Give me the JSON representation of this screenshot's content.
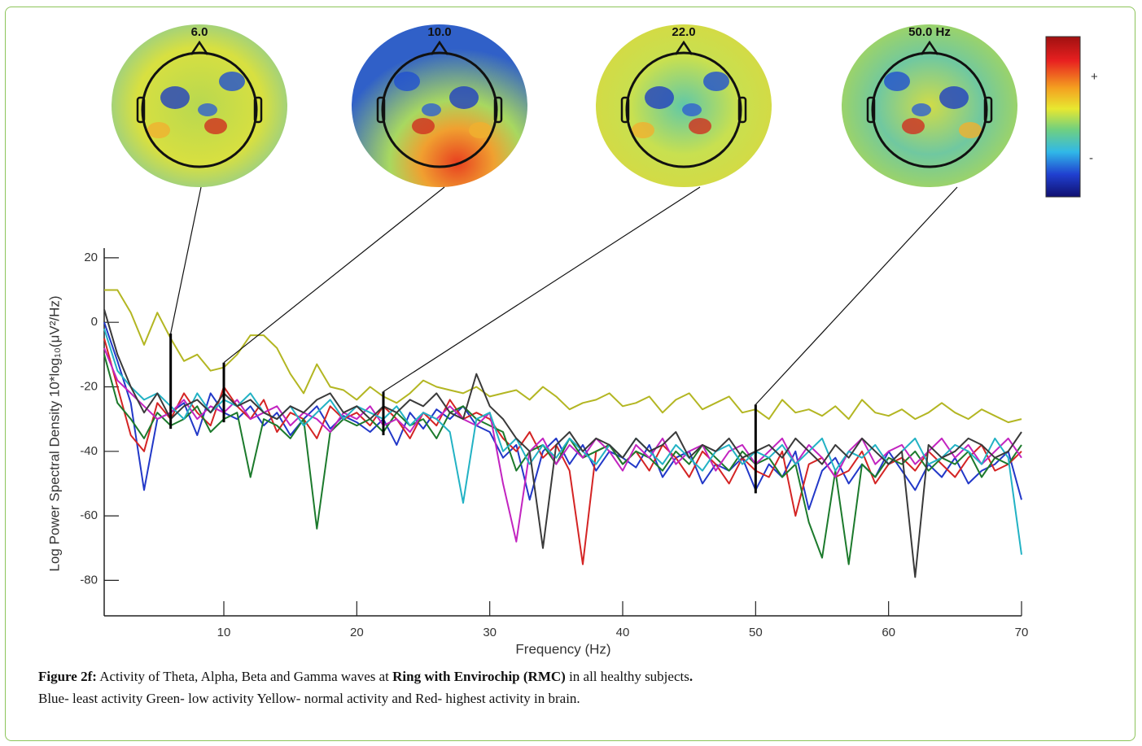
{
  "chart_data": {
    "type": "line",
    "xlabel": "Frequency (Hz)",
    "ylabel": "Log Power Spectral Density 10*log₁₀(μV²/Hz)",
    "xlim": [
      1,
      70
    ],
    "ylim": [
      -91,
      23
    ],
    "xticks": [
      10,
      20,
      30,
      40,
      50,
      60,
      70
    ],
    "yticks": [
      -80,
      -60,
      -40,
      -20,
      0,
      20
    ],
    "x": [
      1,
      2,
      3,
      4,
      5,
      6,
      7,
      8,
      9,
      10,
      11,
      12,
      13,
      14,
      15,
      16,
      17,
      18,
      19,
      20,
      21,
      22,
      23,
      24,
      25,
      26,
      27,
      28,
      29,
      30,
      31,
      32,
      33,
      34,
      35,
      36,
      37,
      38,
      39,
      40,
      41,
      42,
      43,
      44,
      45,
      46,
      47,
      48,
      49,
      50,
      51,
      52,
      53,
      54,
      55,
      56,
      57,
      58,
      59,
      60,
      61,
      62,
      63,
      64,
      65,
      66,
      67,
      68,
      69,
      70
    ],
    "series": [
      {
        "color": "#b3b622",
        "values": [
          10,
          10,
          3,
          -7,
          3,
          -5,
          -12,
          -10,
          -15,
          -14,
          -10,
          -4,
          -4,
          -8,
          -16,
          -22,
          -13,
          -20,
          -21,
          -24,
          -20,
          -23,
          -25,
          -22,
          -18,
          -20,
          -21,
          -22,
          -20,
          -23,
          -22,
          -21,
          -24,
          -20,
          -23,
          -27,
          -25,
          -24,
          -22,
          -26,
          -25,
          -23,
          -28,
          -24,
          -22,
          -27,
          -25,
          -23,
          -28,
          -27,
          -30,
          -24,
          -28,
          -27,
          -29,
          -26,
          -30,
          -24,
          -28,
          -29,
          -27,
          -30,
          -28,
          -25,
          -28,
          -30,
          -27,
          -29,
          -31,
          -30
        ]
      },
      {
        "color": "#2238c8",
        "values": [
          0,
          -12,
          -25,
          -52,
          -30,
          -28,
          -25,
          -35,
          -22,
          -28,
          -30,
          -26,
          -32,
          -28,
          -35,
          -30,
          -26,
          -33,
          -29,
          -31,
          -34,
          -30,
          -38,
          -28,
          -33,
          -27,
          -30,
          -26,
          -32,
          -34,
          -42,
          -38,
          -55,
          -40,
          -36,
          -44,
          -38,
          -46,
          -40,
          -42,
          -45,
          -38,
          -48,
          -42,
          -40,
          -50,
          -44,
          -46,
          -42,
          -52,
          -44,
          -48,
          -40,
          -58,
          -46,
          -42,
          -50,
          -44,
          -48,
          -40,
          -46,
          -52,
          -44,
          -48,
          -42,
          -50,
          -46,
          -44,
          -40,
          -55
        ]
      },
      {
        "color": "#d42424",
        "values": [
          -5,
          -20,
          -35,
          -40,
          -25,
          -30,
          -22,
          -28,
          -32,
          -20,
          -26,
          -30,
          -24,
          -34,
          -28,
          -30,
          -36,
          -26,
          -30,
          -28,
          -32,
          -26,
          -30,
          -36,
          -28,
          -32,
          -24,
          -30,
          -28,
          -30,
          -36,
          -40,
          -34,
          -42,
          -38,
          -46,
          -75,
          -40,
          -38,
          -44,
          -40,
          -46,
          -38,
          -42,
          -48,
          -40,
          -44,
          -50,
          -42,
          -46,
          -48,
          -40,
          -60,
          -44,
          -42,
          -48,
          -46,
          -40,
          -50,
          -44,
          -42,
          -46,
          -40,
          -44,
          -48,
          -42,
          -38,
          -46,
          -44,
          -40
        ]
      },
      {
        "color": "#1c7a2c",
        "values": [
          -10,
          -25,
          -30,
          -36,
          -28,
          -32,
          -30,
          -26,
          -34,
          -30,
          -28,
          -48,
          -30,
          -32,
          -36,
          -30,
          -64,
          -34,
          -30,
          -32,
          -30,
          -34,
          -28,
          -32,
          -30,
          -36,
          -28,
          -26,
          -30,
          -32,
          -34,
          -46,
          -40,
          -38,
          -44,
          -36,
          -42,
          -40,
          -38,
          -44,
          -40,
          -42,
          -46,
          -40,
          -44,
          -38,
          -42,
          -46,
          -40,
          -44,
          -42,
          -48,
          -44,
          -62,
          -73,
          -46,
          -75,
          -44,
          -48,
          -42,
          -44,
          -40,
          -46,
          -42,
          -44,
          -40,
          -48,
          -42,
          -44,
          -38
        ]
      },
      {
        "color": "#c224c0",
        "values": [
          -8,
          -18,
          -22,
          -26,
          -30,
          -28,
          -24,
          -30,
          -26,
          -28,
          -24,
          -30,
          -28,
          -26,
          -32,
          -28,
          -30,
          -34,
          -28,
          -30,
          -26,
          -32,
          -30,
          -34,
          -28,
          -30,
          -26,
          -30,
          -32,
          -28,
          -50,
          -68,
          -40,
          -36,
          -44,
          -38,
          -42,
          -36,
          -40,
          -46,
          -38,
          -42,
          -36,
          -44,
          -40,
          -38,
          -46,
          -40,
          -38,
          -44,
          -40,
          -36,
          -44,
          -38,
          -42,
          -48,
          -40,
          -36,
          -44,
          -40,
          -38,
          -44,
          -40,
          -36,
          -42,
          -38,
          -44,
          -40,
          -36,
          -42
        ]
      },
      {
        "color": "#22b2c4",
        "values": [
          -2,
          -15,
          -20,
          -24,
          -22,
          -26,
          -30,
          -22,
          -28,
          -24,
          -26,
          -22,
          -28,
          -30,
          -26,
          -32,
          -28,
          -24,
          -30,
          -26,
          -28,
          -30,
          -26,
          -32,
          -28,
          -30,
          -34,
          -56,
          -30,
          -28,
          -40,
          -36,
          -44,
          -38,
          -42,
          -36,
          -40,
          -44,
          -38,
          -42,
          -36,
          -40,
          -44,
          -38,
          -42,
          -46,
          -40,
          -38,
          -44,
          -40,
          -42,
          -38,
          -44,
          -40,
          -36,
          -46,
          -40,
          -42,
          -38,
          -44,
          -40,
          -36,
          -44,
          -42,
          -38,
          -40,
          -44,
          -36,
          -42,
          -72
        ]
      },
      {
        "color": "#3a3a3a",
        "values": [
          4,
          -10,
          -20,
          -28,
          -22,
          -30,
          -26,
          -24,
          -28,
          -22,
          -26,
          -24,
          -28,
          -30,
          -26,
          -28,
          -24,
          -22,
          -28,
          -26,
          -30,
          -26,
          -28,
          -24,
          -26,
          -22,
          -28,
          -30,
          -16,
          -26,
          -30,
          -36,
          -40,
          -70,
          -38,
          -34,
          -40,
          -36,
          -38,
          -42,
          -36,
          -40,
          -38,
          -34,
          -42,
          -38,
          -40,
          -36,
          -42,
          -40,
          -38,
          -42,
          -36,
          -40,
          -44,
          -38,
          -42,
          -36,
          -40,
          -44,
          -40,
          -79,
          -38,
          -42,
          -40,
          -36,
          -38,
          -42,
          -40,
          -34
        ]
      }
    ],
    "topomaps": [
      {
        "title": "6.0",
        "freq": 6
      },
      {
        "title": "10.0",
        "freq": 10
      },
      {
        "title": "22.0",
        "freq": 22
      },
      {
        "title": "50.0 Hz",
        "freq": 50
      }
    ],
    "colorbar": {
      "top_label": "+",
      "bottom_label": "-"
    }
  },
  "caption": {
    "label": "Figure 2f:",
    "text": "Activity of Theta, Alpha, Beta and Gamma waves at",
    "bold": "Ring with Envirochip (RMC)",
    "tail": "in all healthy subjects",
    "end": ".",
    "line2": "Blue- least activity Green- low activity Yellow- normal activity and Red- highest activity in brain."
  }
}
